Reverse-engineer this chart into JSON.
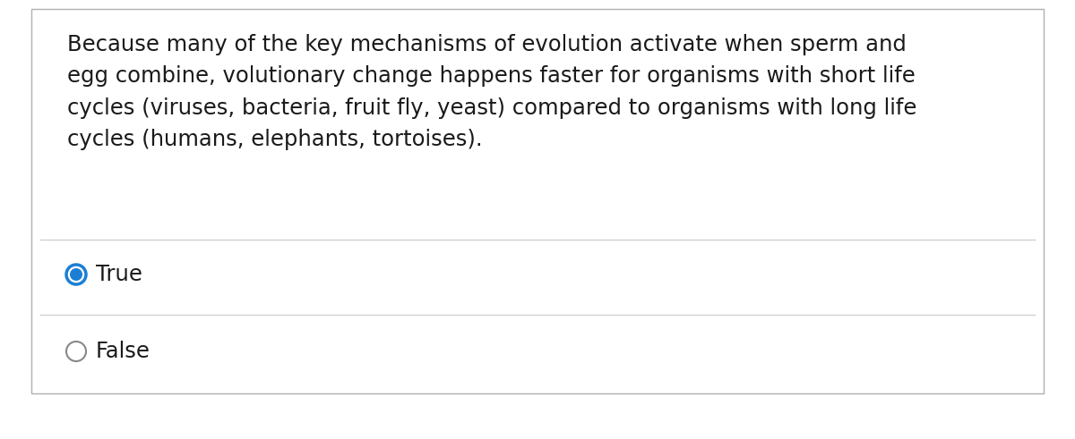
{
  "paragraph_text": "Because many of the key mechanisms of evolution activate when sperm and\negg combine, volutionary change happens faster for organisms with short life\ncycles (viruses, bacteria, fruit fly, yeast) compared to organisms with long life\ncycles (humans, elephants, tortoises).",
  "options": [
    "True",
    "False"
  ],
  "background_color": "#ffffff",
  "outer_bg_color": "#ffffff",
  "border_color": "#b0b0b0",
  "text_color": "#1a1a1a",
  "option_text_color": "#1a1a1a",
  "selected_circle_border": "#1a7fd4",
  "selected_circle_inner": "#1a7fd4",
  "unselected_circle_border": "#888888",
  "separator_color": "#cccccc",
  "paragraph_fontsize": 17.5,
  "option_fontsize": 17.5,
  "fig_width": 12.0,
  "fig_height": 4.91
}
